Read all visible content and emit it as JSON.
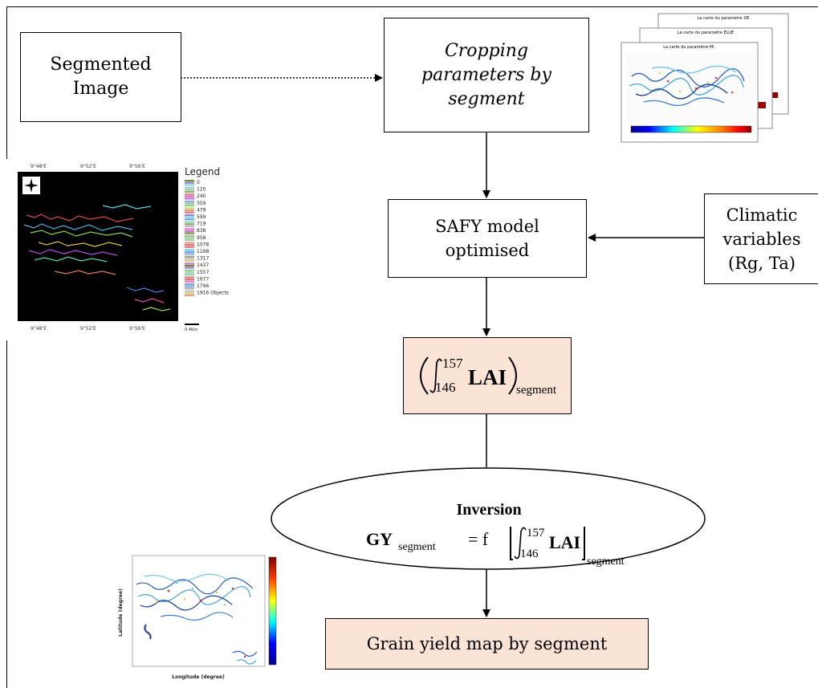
{
  "nodes": {
    "segmented_image": [
      "Segmented",
      "Image"
    ],
    "cropping": [
      "Cropping",
      "parameters by",
      "segment"
    ],
    "safy": [
      "SAFY model",
      "optimised"
    ],
    "climatic": [
      "Climatic",
      "variables",
      "(Rg, Ta)"
    ],
    "lai": {
      "lower": "146",
      "upper": "157",
      "var": "LAI",
      "sub": "segment"
    },
    "inversion": {
      "title": "Inversion",
      "lhs": "GY",
      "lhs_sub": "segment",
      "eq": "= f",
      "lower": "146",
      "upper": "157",
      "var": "LAI",
      "sub": "segment"
    },
    "grain": "Grain yield map by segment"
  },
  "thumbnails": {
    "segmented_map": {
      "legend_title": "Legend",
      "legend_values": [
        "0",
        "120",
        "240",
        "359",
        "479",
        "599",
        "719",
        "838",
        "958",
        "1078",
        "1198",
        "1317",
        "1437",
        "1557",
        "1677",
        "1796",
        "1916 Objects"
      ],
      "top_ticks": [
        "9°48'E",
        "9°52'E",
        "9°56'E"
      ],
      "bottom_ticks": [
        "9°48'E",
        "9°52'E",
        "9°56'E"
      ],
      "scale_label": "0      4Km"
    },
    "parameter_maps": {
      "titles": [
        "La carte du paramètre DE",
        "La carte du paramètre ELUE",
        "La carte du paramètre Mi"
      ]
    },
    "yield_map": {
      "xlabel": "Longitude (degree)",
      "ylabel": "Latitude (degree)"
    }
  }
}
